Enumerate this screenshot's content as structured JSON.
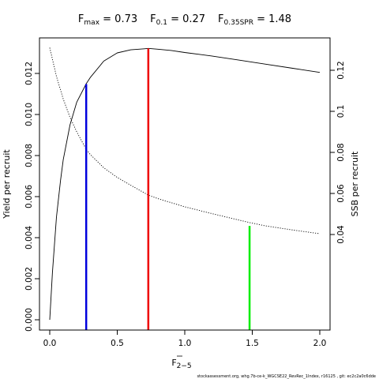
{
  "chart_data": {
    "type": "line",
    "title": {
      "fmax": {
        "label": "F",
        "sub": "max",
        "eq": " = 0.73"
      },
      "f01": {
        "label": "F",
        "sub": "0.1",
        "eq": " = 0.27"
      },
      "f035": {
        "label": "F",
        "sub": "0.35SPR",
        "eq": " = 1.48"
      }
    },
    "xlabel": {
      "label": "F",
      "sub": "2−5"
    },
    "ylabel_left": "Yield per recruit",
    "ylabel_right": "SSB per recruit",
    "xlim": [
      0,
      2.0
    ],
    "ylim_left": [
      -0.0005,
      0.0133
    ],
    "ylim_right": [
      0.0,
      0.1325
    ],
    "x_ticks": [
      "0.0",
      "0.5",
      "1.0",
      "1.5",
      "2.0"
    ],
    "y_left_ticks": [
      "0.000",
      "0.002",
      "0.004",
      "0.006",
      "0.008",
      "0.010",
      "0.012"
    ],
    "y_right_ticks": [
      "0.04",
      "0.06",
      "0.08",
      "0.1",
      "0.12"
    ],
    "series": [
      {
        "axis": "left",
        "style": "solid",
        "color": "#000000",
        "x": [
          0.0,
          0.02,
          0.05,
          0.08,
          0.1,
          0.15,
          0.2,
          0.27,
          0.3,
          0.4,
          0.5,
          0.6,
          0.7,
          0.73,
          0.8,
          0.9,
          1.0,
          1.2,
          1.4,
          1.6,
          1.8,
          2.0
        ],
        "y": [
          0.0,
          0.0023,
          0.005,
          0.0068,
          0.0078,
          0.0095,
          0.0106,
          0.0115,
          0.0118,
          0.0126,
          0.013,
          0.01315,
          0.0132,
          0.01322,
          0.01318,
          0.01312,
          0.01302,
          0.01285,
          0.01265,
          0.01245,
          0.01225,
          0.01205
        ]
      },
      {
        "axis": "right",
        "style": "dotted",
        "color": "#000000",
        "x": [
          0.0,
          0.05,
          0.1,
          0.15,
          0.2,
          0.27,
          0.3,
          0.4,
          0.5,
          0.6,
          0.73,
          0.8,
          1.0,
          1.2,
          1.48,
          1.6,
          1.8,
          2.0
        ],
        "y": [
          0.131,
          0.117,
          0.106,
          0.097,
          0.09,
          0.0815,
          0.079,
          0.0725,
          0.0678,
          0.064,
          0.0592,
          0.0575,
          0.0535,
          0.0502,
          0.0458,
          0.0442,
          0.0422,
          0.0404
        ]
      }
    ],
    "reference_lines": [
      {
        "x": 0.27,
        "y_bottom": -0.0005,
        "y_top": 0.01148,
        "color": "#0000dd"
      },
      {
        "x": 0.73,
        "y_bottom": -0.0005,
        "y_top": 0.01322,
        "color": "#ee0000"
      },
      {
        "x": 1.48,
        "y_bottom": -0.0005,
        "y_top": 0.00457,
        "color": "#00ee00"
      }
    ]
  },
  "footnote": "stockassessment.org, whg.7b-ce-k_WGCSE22_RevRec_1Index, r16125 , git: ec2c2a0c6dde"
}
